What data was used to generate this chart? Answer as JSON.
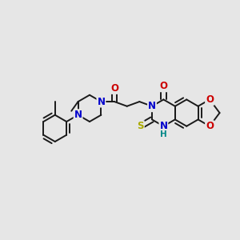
{
  "background_color": "#e6e6e6",
  "figsize": [
    3.0,
    3.0
  ],
  "dpi": 100,
  "bond_color": "#1a1a1a",
  "bond_width": 1.4,
  "atom_colors": {
    "N": "#0000cc",
    "O": "#cc0000",
    "S": "#aaaa00",
    "H": "#008888",
    "C": "#1a1a1a"
  },
  "label_fontsize": 8.5
}
